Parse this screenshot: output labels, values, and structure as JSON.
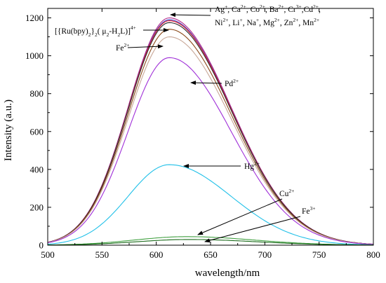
{
  "chart_data": {
    "type": "line",
    "xlabel": "wavelength/nm",
    "ylabel": "Intensity (a.u.)",
    "xlim": [
      500,
      800
    ],
    "ylim": [
      0,
      1250
    ],
    "xticks": [
      500,
      550,
      600,
      650,
      700,
      750,
      800
    ],
    "yticks": [
      0,
      200,
      400,
      600,
      800,
      1000,
      1200
    ],
    "grid": false,
    "series": [
      {
        "name": "Ag+, Ca2+, Co2+, Ba2+, Cr3+, Cd2+, Ni2+, Li+, Na+, Mg2+, Zn2+, Mn2+",
        "peak_x": 612,
        "peak_y": 1200,
        "color": "#b0288a"
      },
      {
        "name": "",
        "peak_x": 612,
        "peak_y": 1190,
        "color": "#4040c8"
      },
      {
        "name": "",
        "peak_x": 612,
        "peak_y": 1185,
        "color": "#e0202a"
      },
      {
        "name": "",
        "peak_x": 612,
        "peak_y": 1175,
        "color": "#2a2a2a"
      },
      {
        "name": "[{Ru(bpy)2}2(μ2-H2L)]4+",
        "peak_x": 612,
        "peak_y": 1140,
        "color": "#8a4a1a"
      },
      {
        "name": "Fe2+",
        "peak_x": 612,
        "peak_y": 1100,
        "color": "#c8a898"
      },
      {
        "name": "Pd2+",
        "peak_x": 612,
        "peak_y": 990,
        "color": "#a030d8"
      },
      {
        "name": "Hg2+",
        "peak_x": 612,
        "peak_y": 425,
        "color": "#20c0e8"
      },
      {
        "name": "Cu2+",
        "peak_x": 628,
        "peak_y": 45,
        "color": "#40a040"
      },
      {
        "name": "Fe3+",
        "peak_x": 630,
        "peak_y": 30,
        "color": "#1a6a1a"
      }
    ],
    "annotations": [
      {
        "id": "metals",
        "parts": [
          [
            "Ag",
            "+"
          ],
          [
            ", Ca",
            "2+"
          ],
          [
            ", Co",
            "2+"
          ],
          [
            ",  Ba",
            "2+"
          ],
          [
            ", Cr",
            "3+"
          ],
          [
            ",Cd",
            "2+"
          ],
          [
            ",",
            ""
          ]
        ],
        "parts2": [
          [
            "Ni",
            "2+"
          ],
          [
            ", Li",
            "+"
          ],
          [
            ", Na",
            "+"
          ],
          [
            ", Mg",
            "2+"
          ],
          [
            ", Zn",
            "2+"
          ],
          [
            ", Mn",
            "2+"
          ]
        ]
      },
      {
        "id": "complex",
        "parts": [
          [
            "[{Ru(bpy)",
            "",
            ""
          ],
          [
            "}",
            "",
            ""
          ],
          [
            "(  μ",
            "",
            ""
          ],
          [
            "-H",
            "",
            ""
          ],
          [
            "L)]",
            "4+",
            ""
          ]
        ]
      },
      {
        "id": "fe2",
        "parts": [
          [
            "Fe",
            "2+"
          ]
        ]
      },
      {
        "id": "pd",
        "parts": [
          [
            "Pd",
            "2+"
          ]
        ]
      },
      {
        "id": "hg",
        "parts": [
          [
            "Hg",
            "2+"
          ]
        ]
      },
      {
        "id": "cu",
        "parts": [
          [
            "Cu",
            "2+"
          ]
        ]
      },
      {
        "id": "fe3",
        "parts": [
          [
            "Fe",
            "3+"
          ]
        ]
      }
    ]
  }
}
